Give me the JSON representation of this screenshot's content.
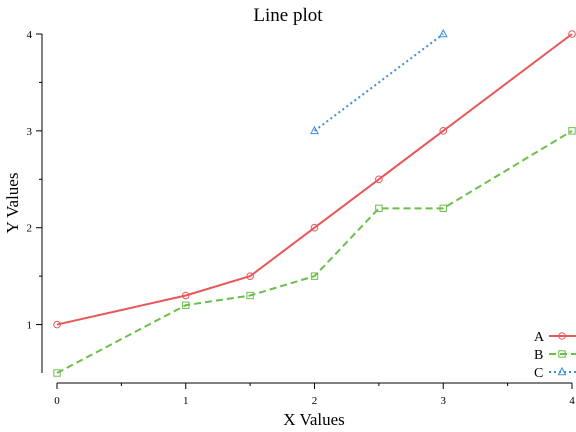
{
  "chart_data": {
    "type": "line",
    "title": "Line plot",
    "xlabel": "X Values",
    "ylabel": "Y Values",
    "xlim": [
      0,
      4
    ],
    "ylim": [
      0.5,
      4
    ],
    "xticks": [
      0,
      1,
      2,
      3,
      4
    ],
    "yticks": [
      1,
      2,
      3,
      4
    ],
    "x_minor_ticks": [
      0.5,
      1.5,
      2.5,
      3.5
    ],
    "y_minor_ticks": [
      1.5,
      2.5,
      3.5
    ],
    "grid": false,
    "legend_position": "bottom-right",
    "series": [
      {
        "name": "A",
        "color": "#e8575a",
        "line_style": "solid",
        "marker": "circle",
        "x": [
          0,
          1,
          1.5,
          2,
          2.5,
          3,
          4
        ],
        "y": [
          1.0,
          1.3,
          1.5,
          2.0,
          2.5,
          3.0,
          4.0
        ]
      },
      {
        "name": "B",
        "color": "#6abf4b",
        "line_style": "dashed",
        "marker": "square",
        "x": [
          0,
          1,
          1.5,
          2,
          2.5,
          3,
          4
        ],
        "y": [
          0.5,
          1.2,
          1.3,
          1.5,
          2.2,
          2.2,
          3.0
        ]
      },
      {
        "name": "C",
        "color": "#3a8fd9",
        "line_style": "dotted",
        "marker": "triangle",
        "x": [
          2,
          3
        ],
        "y": [
          3.0,
          4.0
        ]
      }
    ]
  }
}
